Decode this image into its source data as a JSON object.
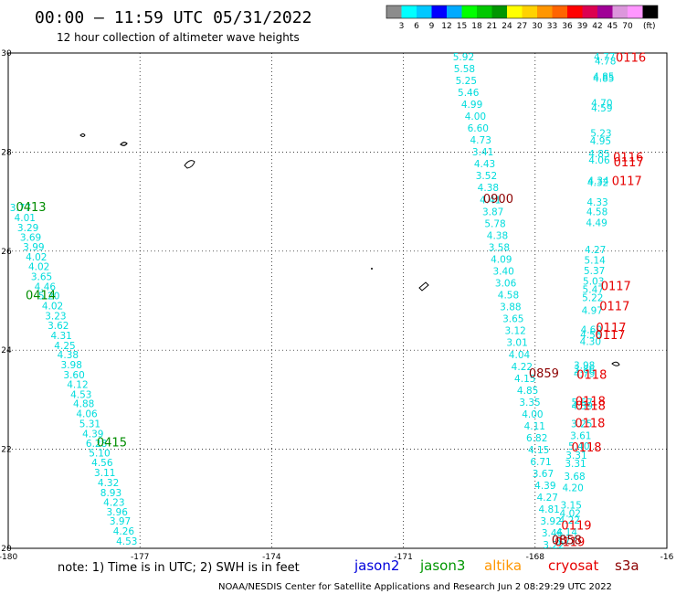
{
  "header": {
    "title": "00:00 – 11:59 UTC 05/31/2022",
    "subtitle": "12 hour collection of altimeter wave heights"
  },
  "colorbar": {
    "colors": [
      "#8c8c8c",
      "#00ffff",
      "#00c8ff",
      "#0000ff",
      "#00aaff",
      "#00ff00",
      "#00c800",
      "#009600",
      "#ffff00",
      "#ffd200",
      "#ff9600",
      "#ff6400",
      "#ff0000",
      "#dc0050",
      "#a00096",
      "#dc96dc",
      "#ff96ff",
      "#000000"
    ],
    "labels": [
      "3",
      "6",
      "9",
      "12",
      "15",
      "18",
      "21",
      "24",
      "27",
      "30",
      "33",
      "36",
      "39",
      "42",
      "45",
      "70"
    ],
    "unit": "(ft)"
  },
  "chart_data": {
    "type": "scatter",
    "title": "00:00 – 11:59 UTC 05/31/2022",
    "subtitle": "12 hour collection of altimeter wave heights",
    "xlim": [
      -180,
      -165
    ],
    "ylim": [
      20,
      30
    ],
    "x_ticks": [
      "-180",
      "-177",
      "-174",
      "-171",
      "-168",
      "-16"
    ],
    "y_ticks": [
      "30",
      "28",
      "26",
      "24",
      "22",
      "20"
    ],
    "grid": true,
    "series": [
      {
        "name": "jason2",
        "color": "#00dcdc",
        "points": [
          {
            "lon": -179.72,
            "lat": 26.88,
            "v": "3.77"
          },
          {
            "lon": -179.62,
            "lat": 26.68,
            "v": "4.01"
          },
          {
            "lon": -179.55,
            "lat": 26.48,
            "v": "3.29"
          },
          {
            "lon": -179.49,
            "lat": 26.28,
            "v": "3.69"
          },
          {
            "lon": -179.42,
            "lat": 26.09,
            "v": "3.99"
          },
          {
            "lon": -179.36,
            "lat": 25.89,
            "v": "4.02"
          },
          {
            "lon": -179.3,
            "lat": 25.69,
            "v": "4.02"
          },
          {
            "lon": -179.24,
            "lat": 25.49,
            "v": "3.65"
          },
          {
            "lon": -179.16,
            "lat": 25.29,
            "v": "4.46"
          },
          {
            "lon": -179.07,
            "lat": 25.1,
            "v": "5.20"
          },
          {
            "lon": -178.99,
            "lat": 24.9,
            "v": "4.02"
          },
          {
            "lon": -178.92,
            "lat": 24.7,
            "v": "3.23"
          },
          {
            "lon": -178.86,
            "lat": 24.5,
            "v": "3.62"
          },
          {
            "lon": -178.79,
            "lat": 24.3,
            "v": "4.31"
          },
          {
            "lon": -178.71,
            "lat": 24.1,
            "v": "4.25"
          },
          {
            "lon": -178.64,
            "lat": 23.91,
            "v": "4.38"
          },
          {
            "lon": -178.56,
            "lat": 23.71,
            "v": "3.98"
          },
          {
            "lon": -178.5,
            "lat": 23.51,
            "v": "3.60"
          },
          {
            "lon": -178.42,
            "lat": 23.31,
            "v": "4.12"
          },
          {
            "lon": -178.34,
            "lat": 23.11,
            "v": "4.53"
          },
          {
            "lon": -178.28,
            "lat": 22.92,
            "v": "4.88"
          },
          {
            "lon": -178.21,
            "lat": 22.72,
            "v": "4.06"
          },
          {
            "lon": -178.14,
            "lat": 22.52,
            "v": "5.31"
          },
          {
            "lon": -178.07,
            "lat": 22.32,
            "v": "4.39"
          },
          {
            "lon": -177.99,
            "lat": 22.12,
            "v": "6.28"
          },
          {
            "lon": -177.92,
            "lat": 21.93,
            "v": "5.10"
          },
          {
            "lon": -177.86,
            "lat": 21.73,
            "v": "4.56"
          },
          {
            "lon": -177.8,
            "lat": 21.53,
            "v": "3.11"
          },
          {
            "lon": -177.72,
            "lat": 21.33,
            "v": "4.32"
          },
          {
            "lon": -177.66,
            "lat": 21.13,
            "v": "8.93"
          },
          {
            "lon": -177.59,
            "lat": 20.93,
            "v": "4.23"
          },
          {
            "lon": -177.52,
            "lat": 20.74,
            "v": "3.96"
          },
          {
            "lon": -177.45,
            "lat": 20.55,
            "v": "3.97"
          },
          {
            "lon": -177.37,
            "lat": 20.35,
            "v": "4.26"
          },
          {
            "lon": -177.3,
            "lat": 20.15,
            "v": "4.53"
          },
          {
            "lon": -169.63,
            "lat": 29.93,
            "v": "5.92"
          },
          {
            "lon": -169.61,
            "lat": 29.69,
            "v": "5.58"
          },
          {
            "lon": -169.57,
            "lat": 29.45,
            "v": "5.25"
          },
          {
            "lon": -169.52,
            "lat": 29.21,
            "v": "5.46"
          },
          {
            "lon": -169.44,
            "lat": 28.97,
            "v": "4.99"
          },
          {
            "lon": -169.36,
            "lat": 28.73,
            "v": "4.00"
          },
          {
            "lon": -169.3,
            "lat": 28.49,
            "v": "6.60"
          },
          {
            "lon": -169.24,
            "lat": 28.25,
            "v": "4.73"
          },
          {
            "lon": -169.19,
            "lat": 28.01,
            "v": "3.41"
          },
          {
            "lon": -169.15,
            "lat": 27.77,
            "v": "4.43"
          },
          {
            "lon": -169.11,
            "lat": 27.53,
            "v": "3.52"
          },
          {
            "lon": -169.07,
            "lat": 27.29,
            "v": "4.38"
          },
          {
            "lon": -169.02,
            "lat": 27.04,
            "v": "4.41"
          },
          {
            "lon": -168.96,
            "lat": 26.8,
            "v": "3.87"
          },
          {
            "lon": -168.91,
            "lat": 26.56,
            "v": "5.78"
          },
          {
            "lon": -168.86,
            "lat": 26.32,
            "v": "4.38"
          },
          {
            "lon": -168.82,
            "lat": 26.08,
            "v": "3.58"
          },
          {
            "lon": -168.77,
            "lat": 25.84,
            "v": "4.09"
          },
          {
            "lon": -168.72,
            "lat": 25.6,
            "v": "3.40"
          },
          {
            "lon": -168.67,
            "lat": 25.36,
            "v": "3.06"
          },
          {
            "lon": -168.61,
            "lat": 25.12,
            "v": "4.58"
          },
          {
            "lon": -168.56,
            "lat": 24.88,
            "v": "3.88"
          },
          {
            "lon": -168.5,
            "lat": 24.64,
            "v": "3.65"
          },
          {
            "lon": -168.45,
            "lat": 24.4,
            "v": "3.12"
          },
          {
            "lon": -168.41,
            "lat": 24.16,
            "v": "3.01"
          },
          {
            "lon": -168.36,
            "lat": 23.91,
            "v": "4.04"
          },
          {
            "lon": -168.3,
            "lat": 23.67,
            "v": "4.22"
          },
          {
            "lon": -168.23,
            "lat": 23.43,
            "v": "4.15"
          },
          {
            "lon": -168.17,
            "lat": 23.19,
            "v": "4.85"
          },
          {
            "lon": -168.12,
            "lat": 22.95,
            "v": "3.35"
          },
          {
            "lon": -168.06,
            "lat": 22.71,
            "v": "4.00"
          },
          {
            "lon": -168.01,
            "lat": 22.47,
            "v": "4.11"
          },
          {
            "lon": -167.96,
            "lat": 22.23,
            "v": "6.82"
          },
          {
            "lon": -167.92,
            "lat": 21.99,
            "v": "4.15"
          },
          {
            "lon": -167.87,
            "lat": 21.75,
            "v": "6.71"
          },
          {
            "lon": -167.82,
            "lat": 21.51,
            "v": "3.67"
          },
          {
            "lon": -167.77,
            "lat": 21.27,
            "v": "4.39"
          },
          {
            "lon": -167.72,
            "lat": 21.03,
            "v": "4.27"
          },
          {
            "lon": -167.68,
            "lat": 20.79,
            "v": "4.81"
          },
          {
            "lon": -167.64,
            "lat": 20.55,
            "v": "3.92"
          },
          {
            "lon": -167.61,
            "lat": 20.31,
            "v": "3.46"
          },
          {
            "lon": -167.58,
            "lat": 20.07,
            "v": "3.22"
          },
          {
            "lon": -166.42,
            "lat": 29.93,
            "v": "4.77"
          },
          {
            "lon": -166.4,
            "lat": 29.84,
            "v": "4.78"
          },
          {
            "lon": -166.44,
            "lat": 29.53,
            "v": "4.85"
          },
          {
            "lon": -166.44,
            "lat": 29.49,
            "v": "4.85"
          },
          {
            "lon": -166.48,
            "lat": 28.99,
            "v": "4.70"
          },
          {
            "lon": -166.48,
            "lat": 28.89,
            "v": "4.59"
          },
          {
            "lon": -166.5,
            "lat": 28.39,
            "v": "5.23"
          },
          {
            "lon": -166.51,
            "lat": 28.23,
            "v": "4.95"
          },
          {
            "lon": -166.54,
            "lat": 27.97,
            "v": "4.85"
          },
          {
            "lon": -166.54,
            "lat": 27.84,
            "v": "4.06"
          },
          {
            "lon": -166.56,
            "lat": 27.43,
            "v": "4.34"
          },
          {
            "lon": -166.57,
            "lat": 27.39,
            "v": "4.32"
          },
          {
            "lon": -166.58,
            "lat": 26.99,
            "v": "4.33"
          },
          {
            "lon": -166.59,
            "lat": 26.8,
            "v": "4.58"
          },
          {
            "lon": -166.6,
            "lat": 26.58,
            "v": "4.49"
          },
          {
            "lon": -166.63,
            "lat": 26.03,
            "v": "4.27"
          },
          {
            "lon": -166.64,
            "lat": 25.82,
            "v": "5.14"
          },
          {
            "lon": -166.65,
            "lat": 25.61,
            "v": "5.37"
          },
          {
            "lon": -166.67,
            "lat": 25.4,
            "v": "5.03"
          },
          {
            "lon": -166.68,
            "lat": 25.23,
            "v": "5.47"
          },
          {
            "lon": -166.69,
            "lat": 25.06,
            "v": "5.22"
          },
          {
            "lon": -166.7,
            "lat": 24.81,
            "v": "4.97"
          },
          {
            "lon": -166.72,
            "lat": 24.42,
            "v": "4.60"
          },
          {
            "lon": -166.73,
            "lat": 24.32,
            "v": "4.56"
          },
          {
            "lon": -166.74,
            "lat": 24.18,
            "v": "4.30"
          },
          {
            "lon": -166.88,
            "lat": 23.7,
            "v": "3.98"
          },
          {
            "lon": -166.88,
            "lat": 23.62,
            "v": "3.86"
          },
          {
            "lon": -166.88,
            "lat": 23.53,
            "v": "4.79"
          },
          {
            "lon": -166.93,
            "lat": 22.95,
            "v": "5.57"
          },
          {
            "lon": -166.93,
            "lat": 22.88,
            "v": "4.59"
          },
          {
            "lon": -166.94,
            "lat": 22.52,
            "v": "3.25"
          },
          {
            "lon": -166.96,
            "lat": 22.28,
            "v": "3.61"
          },
          {
            "lon": -167.0,
            "lat": 22.07,
            "v": "5.40"
          },
          {
            "lon": -167.06,
            "lat": 21.88,
            "v": "3.31"
          },
          {
            "lon": -167.08,
            "lat": 21.72,
            "v": "3.31"
          },
          {
            "lon": -167.1,
            "lat": 21.46,
            "v": "3.68"
          },
          {
            "lon": -167.14,
            "lat": 21.23,
            "v": "4.20"
          },
          {
            "lon": -167.18,
            "lat": 20.88,
            "v": "3.15"
          },
          {
            "lon": -167.2,
            "lat": 20.71,
            "v": "4.02"
          },
          {
            "lon": -167.22,
            "lat": 20.57,
            "v": "4.22"
          },
          {
            "lon": -167.28,
            "lat": 20.33,
            "v": "4.14"
          },
          {
            "lon": -167.3,
            "lat": 20.15,
            "v": "3.77"
          }
        ]
      },
      {
        "name": "jason3",
        "color": "#008c00",
        "points": [
          {
            "lon": -179.48,
            "lat": 26.88,
            "v": "0413"
          },
          {
            "lon": -179.26,
            "lat": 25.1,
            "v": "0414"
          },
          {
            "lon": -177.64,
            "lat": 22.13,
            "v": "0415"
          }
        ]
      },
      {
        "name": "cryosat",
        "color": "#e60000",
        "points": [
          {
            "lon": -165.82,
            "lat": 29.9,
            "v": "0116"
          },
          {
            "lon": -165.88,
            "lat": 27.89,
            "v": "0116"
          },
          {
            "lon": -165.87,
            "lat": 27.79,
            "v": "0117"
          },
          {
            "lon": -165.91,
            "lat": 27.41,
            "v": "0117"
          },
          {
            "lon": -166.16,
            "lat": 25.29,
            "v": "0117"
          },
          {
            "lon": -166.19,
            "lat": 24.88,
            "v": "0117"
          },
          {
            "lon": -166.27,
            "lat": 24.45,
            "v": "0117"
          },
          {
            "lon": -166.29,
            "lat": 24.3,
            "v": "0117"
          },
          {
            "lon": -166.71,
            "lat": 23.5,
            "v": "0118"
          },
          {
            "lon": -166.74,
            "lat": 22.96,
            "v": "0118"
          },
          {
            "lon": -166.74,
            "lat": 22.87,
            "v": "0118"
          },
          {
            "lon": -166.75,
            "lat": 22.52,
            "v": "0118"
          },
          {
            "lon": -166.83,
            "lat": 22.03,
            "v": "0118"
          },
          {
            "lon": -167.06,
            "lat": 20.45,
            "v": "0119"
          },
          {
            "lon": -167.21,
            "lat": 20.12,
            "v": "0119"
          }
        ]
      },
      {
        "name": "s3a",
        "color": "#8c0000",
        "points": [
          {
            "lon": -168.84,
            "lat": 27.05,
            "v": "0900"
          },
          {
            "lon": -167.8,
            "lat": 23.52,
            "v": "0859"
          },
          {
            "lon": -167.28,
            "lat": 20.16,
            "v": "0858"
          }
        ]
      }
    ],
    "legend": {
      "note": "note:  1) Time is in UTC;  2) SWH is in feet",
      "entries": [
        {
          "label": "jason2",
          "color": "#0000dc"
        },
        {
          "label": "jason3",
          "color": "#009600"
        },
        {
          "label": "altika",
          "color": "#ff9600"
        },
        {
          "label": "cryosat",
          "color": "#e60000"
        },
        {
          "label": "s3a",
          "color": "#8c0000"
        }
      ]
    }
  },
  "footer": {
    "credit": "NOAA/NESDIS Center for Satellite Applications and Research    Jun  2 08:29:29 UTC 2022"
  }
}
